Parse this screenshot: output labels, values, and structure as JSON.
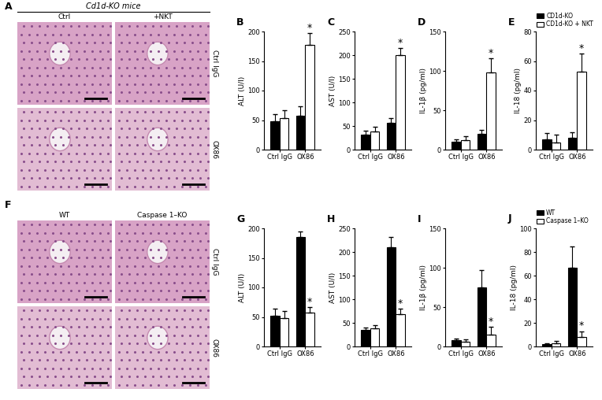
{
  "chart_data": [
    {
      "type": "bar",
      "panel": "B",
      "y_label": "ALT (U/l)",
      "categories": [
        "Ctrl IgG",
        "OX86"
      ],
      "series": [
        {
          "name": "CD1d-KO",
          "color": "#000000",
          "values": [
            48,
            58
          ],
          "errors": [
            12,
            15
          ]
        },
        {
          "name": "CD1d-KO + NKT",
          "color": "#ffffff",
          "values": [
            53,
            178
          ],
          "errors": [
            14,
            20
          ]
        }
      ],
      "annotations": [
        {
          "text": "*",
          "category": "OX86",
          "series": "CD1d-KO + NKT"
        }
      ],
      "ylim": [
        0,
        200
      ],
      "yticks": [
        0,
        50,
        100,
        150,
        200
      ]
    },
    {
      "type": "bar",
      "panel": "C",
      "y_label": "AST (U/l)",
      "categories": [
        "Ctrl IgG",
        "OX86"
      ],
      "series": [
        {
          "name": "CD1d-KO",
          "color": "#000000",
          "values": [
            32,
            57
          ],
          "errors": [
            8,
            10
          ]
        },
        {
          "name": "CD1d-KO + NKT",
          "color": "#ffffff",
          "values": [
            38,
            200
          ],
          "errors": [
            10,
            15
          ]
        }
      ],
      "annotations": [
        {
          "text": "*",
          "category": "OX86",
          "series": "CD1d-KO + NKT"
        }
      ],
      "ylim": [
        0,
        250
      ],
      "yticks": [
        0,
        50,
        100,
        150,
        200,
        250
      ]
    },
    {
      "type": "bar",
      "panel": "D",
      "y_label": "IL-1β (pg/ml)",
      "categories": [
        "Ctrl IgG",
        "OX86"
      ],
      "series": [
        {
          "name": "CD1d-KO",
          "color": "#000000",
          "values": [
            10,
            20
          ],
          "errors": [
            3,
            5
          ]
        },
        {
          "name": "CD1d-KO + NKT",
          "color": "#ffffff",
          "values": [
            12,
            98
          ],
          "errors": [
            5,
            18
          ]
        }
      ],
      "annotations": [
        {
          "text": "*",
          "category": "OX86",
          "series": "CD1d-KO + NKT"
        }
      ],
      "ylim": [
        0,
        150
      ],
      "yticks": [
        0,
        50,
        100,
        150
      ]
    },
    {
      "type": "bar",
      "panel": "E",
      "y_label": "IL-18 (pg/ml)",
      "categories": [
        "Ctrl IgG",
        "OX86"
      ],
      "series": [
        {
          "name": "CD1d-KO",
          "color": "#000000",
          "values": [
            7,
            8
          ],
          "errors": [
            4,
            4
          ]
        },
        {
          "name": "CD1d-KO + NKT",
          "color": "#ffffff",
          "values": [
            5,
            53
          ],
          "errors": [
            5,
            12
          ]
        }
      ],
      "annotations": [
        {
          "text": "*",
          "category": "OX86",
          "series": "CD1d-KO + NKT"
        }
      ],
      "ylim": [
        0,
        80
      ],
      "yticks": [
        0,
        20,
        40,
        60,
        80
      ],
      "legend": "lower left"
    },
    {
      "type": "bar",
      "panel": "G",
      "y_label": "ALT (U/l)",
      "categories": [
        "Ctrl IgG",
        "OX86"
      ],
      "series": [
        {
          "name": "WT",
          "color": "#000000",
          "values": [
            52,
            185
          ],
          "errors": [
            12,
            10
          ]
        },
        {
          "name": "Caspase 1–KO",
          "color": "#ffffff",
          "values": [
            48,
            57
          ],
          "errors": [
            12,
            10
          ]
        }
      ],
      "annotations": [
        {
          "text": "*",
          "category": "OX86",
          "series": "Caspase 1–KO"
        }
      ],
      "ylim": [
        0,
        200
      ],
      "yticks": [
        0,
        50,
        100,
        150,
        200
      ]
    },
    {
      "type": "bar",
      "panel": "H",
      "y_label": "AST (U/l)",
      "categories": [
        "Ctrl IgG",
        "OX86"
      ],
      "series": [
        {
          "name": "WT",
          "color": "#000000",
          "values": [
            35,
            210
          ],
          "errors": [
            5,
            22
          ]
        },
        {
          "name": "Caspase 1–KO",
          "color": "#ffffff",
          "values": [
            38,
            68
          ],
          "errors": [
            7,
            12
          ]
        }
      ],
      "annotations": [
        {
          "text": "*",
          "category": "OX86",
          "series": "Caspase 1–KO"
        }
      ],
      "ylim": [
        0,
        250
      ],
      "yticks": [
        0,
        50,
        100,
        150,
        200,
        250
      ]
    },
    {
      "type": "bar",
      "panel": "I",
      "y_label": "IL-1β (pg/ml)",
      "categories": [
        "Ctrl IgG",
        "OX86"
      ],
      "series": [
        {
          "name": "WT",
          "color": "#000000",
          "values": [
            8,
            75
          ],
          "errors": [
            2,
            22
          ]
        },
        {
          "name": "Caspase 1–KO",
          "color": "#ffffff",
          "values": [
            6,
            15
          ],
          "errors": [
            3,
            10
          ]
        }
      ],
      "annotations": [
        {
          "text": "*",
          "category": "OX86",
          "series": "Caspase 1–KO"
        }
      ],
      "ylim": [
        0,
        150
      ],
      "yticks": [
        0,
        50,
        100,
        150
      ]
    },
    {
      "type": "bar",
      "panel": "J",
      "y_label": "IL-18 (pg/ml)",
      "categories": [
        "Ctrl IgG",
        "OX86"
      ],
      "series": [
        {
          "name": "WT",
          "color": "#000000",
          "values": [
            2,
            67
          ],
          "errors": [
            1,
            18
          ]
        },
        {
          "name": "Caspase 1–KO",
          "color": "#ffffff",
          "values": [
            3,
            8
          ],
          "errors": [
            2,
            5
          ]
        }
      ],
      "annotations": [
        {
          "text": "*",
          "category": "OX86",
          "series": "Caspase 1–KO"
        }
      ],
      "ylim": [
        0,
        100
      ],
      "yticks": [
        0,
        20,
        40,
        60,
        80,
        100
      ],
      "legend": "lower left"
    }
  ],
  "image_panels": [
    {
      "panel": "A",
      "title": "Cd1d-KO mice",
      "columns": [
        "Ctrl",
        "+NKT"
      ],
      "rows": [
        "Ctrl IgG",
        "OX86"
      ]
    },
    {
      "panel": "F",
      "columns": [
        "WT",
        "Caspase 1–KO"
      ],
      "rows": [
        "Ctrl IgG",
        "OX86"
      ]
    }
  ]
}
